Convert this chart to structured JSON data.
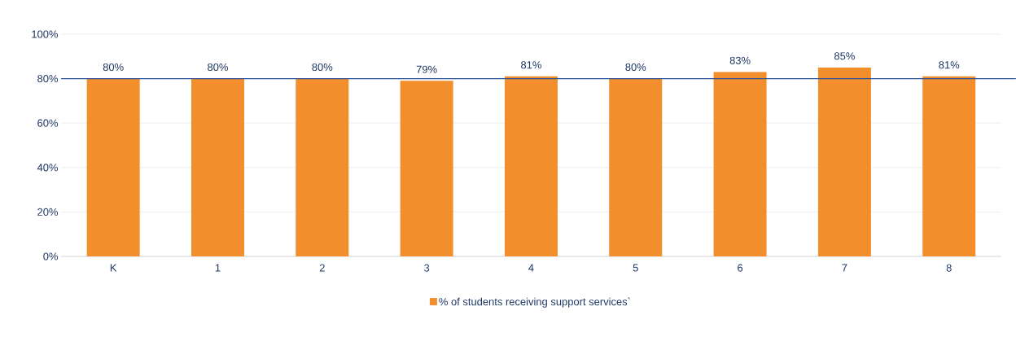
{
  "chart_data": {
    "type": "bar",
    "categories": [
      "K",
      "1",
      "2",
      "3",
      "4",
      "5",
      "6",
      "7",
      "8"
    ],
    "series": [
      {
        "name": "% of students receiving support services`",
        "color": "#f28e2b",
        "values": [
          80,
          80,
          80,
          79,
          81,
          80,
          83,
          85,
          81
        ],
        "value_labels": [
          "80%",
          "80%",
          "80%",
          "79%",
          "81%",
          "80%",
          "83%",
          "85%",
          "81%"
        ]
      }
    ],
    "ylim": [
      0,
      100
    ],
    "yticks": [
      {
        "value": 0,
        "label": "0%"
      },
      {
        "value": 20,
        "label": "20%"
      },
      {
        "value": 40,
        "label": "40%"
      },
      {
        "value": 60,
        "label": "60%"
      },
      {
        "value": 80,
        "label": "80%"
      },
      {
        "value": 100,
        "label": "100%"
      }
    ],
    "grid": "y",
    "legend": "bottom",
    "ref_lines": [
      {
        "axis": "y",
        "value": 80,
        "color": "#2f5597"
      }
    ]
  }
}
